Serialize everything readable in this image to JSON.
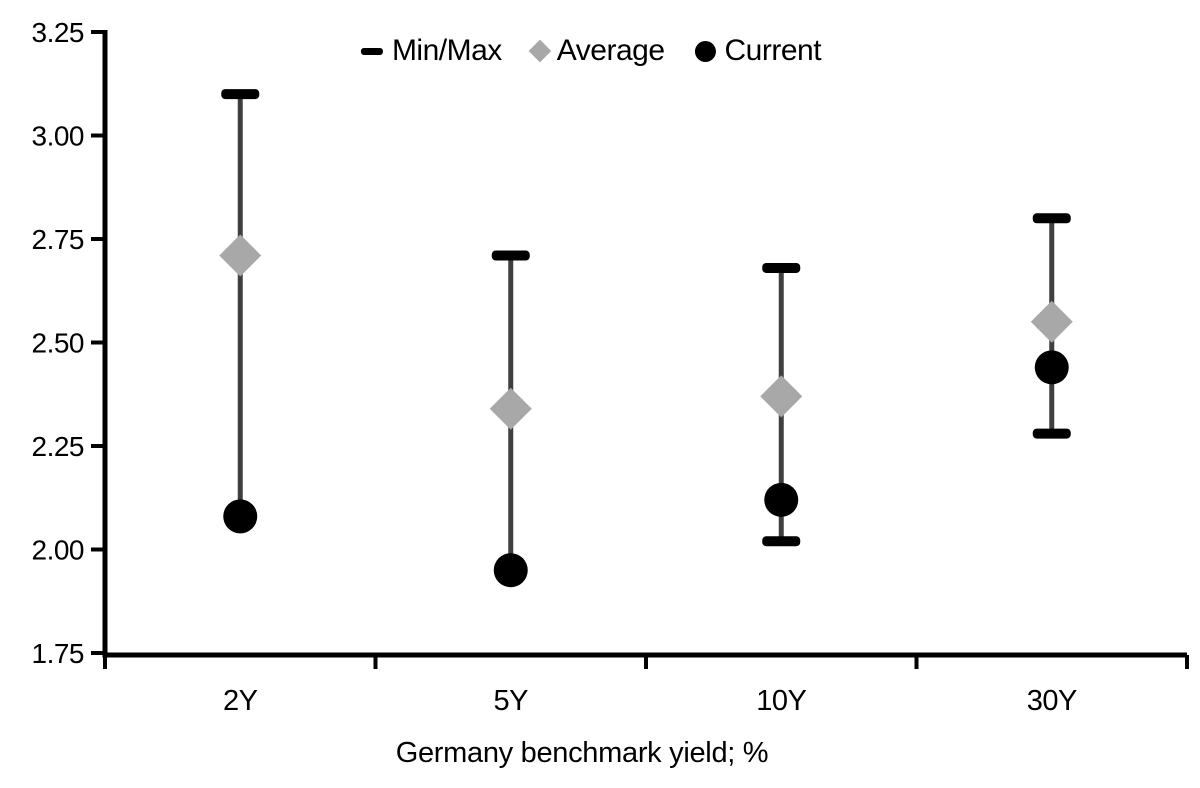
{
  "chart_data": {
    "type": "scatter",
    "subtype": "min-max-range-with-markers",
    "title": "",
    "xlabel": "Germany benchmark yield; %",
    "ylabel": "",
    "categories": [
      "2Y",
      "5Y",
      "10Y",
      "30Y"
    ],
    "series": [
      {
        "name": "Min/Max",
        "marker": "dash",
        "min": [
          2.08,
          1.95,
          2.02,
          2.28
        ],
        "max": [
          3.1,
          2.71,
          2.68,
          2.8
        ]
      },
      {
        "name": "Average",
        "marker": "diamond",
        "values": [
          2.71,
          2.34,
          2.37,
          2.55
        ]
      },
      {
        "name": "Current",
        "marker": "circle",
        "values": [
          2.08,
          1.95,
          2.12,
          2.44
        ]
      }
    ],
    "ylim": [
      1.75,
      3.25
    ],
    "yticks": [
      3.25,
      3.0,
      2.75,
      2.5,
      2.25,
      2.0,
      1.75
    ],
    "grid": false,
    "legend_position": "top-center"
  },
  "colors": {
    "background": "#ffffff",
    "axis": "#000000",
    "text": "#000000",
    "whisker_line": "#3f3f3f",
    "minmax_cap": "#000000",
    "average_marker": "#a8a8a8",
    "current_marker": "#000000"
  }
}
